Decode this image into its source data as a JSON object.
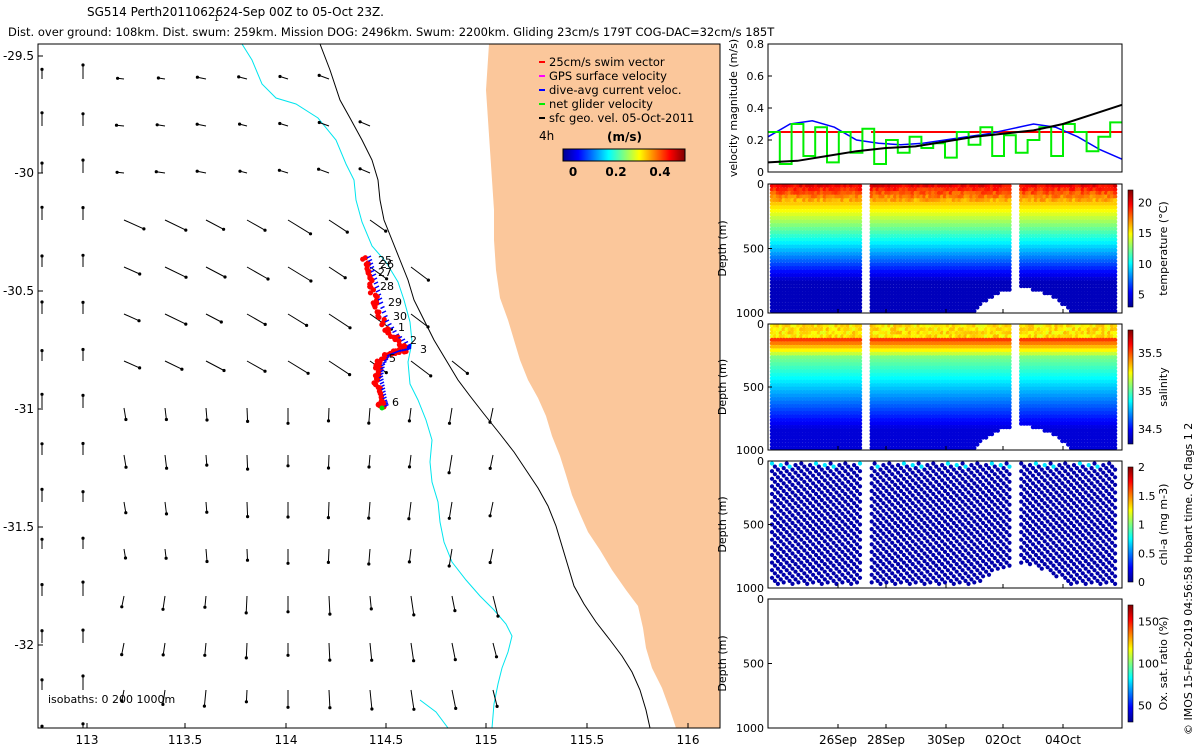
{
  "header": {
    "title": "SG514 Perth20110626",
    "title_sub": "1",
    "title_rest": "24-Sep 00Z to 05-Oct 23Z.",
    "subtitle": "Dist. over ground: 108km. Dist. swum: 259km. Mission DOG: 2496km. Swum: 2200km. Gliding 23cm/s 179T COG-DAC=32cm/s 185T"
  },
  "colors": {
    "land": "#fbc79b",
    "isobath_0": "#000000",
    "isobath_200": "#00e5ee",
    "swim_vector": "#ff0000",
    "gps_velocity": "#ff00ff",
    "dac_velocity": "#0000ff",
    "net_velocity": "#00ee00",
    "geo_velocity": "#000000",
    "track": "#ff0000",
    "track_dives": "#0000ff",
    "track_end": "#00dd00"
  },
  "map": {
    "legend": [
      {
        "label": "25cm/s swim vector",
        "color": "#ff0000"
      },
      {
        "label": "GPS surface velocity",
        "color": "#ff00ff"
      },
      {
        "label": "dive-avg current veloc.",
        "color": "#0000ff"
      },
      {
        "label": "net glider velocity",
        "color": "#00ee00"
      },
      {
        "label": "sfc geo. vel. 05-Oct-2011",
        "color": "#000000"
      }
    ],
    "interval_label": "4h",
    "colorbar_title": "(m/s)",
    "colorbar_ticks": [
      "0",
      "0.2",
      "0.4"
    ],
    "isobaths_label": "isobaths: 0   200  1000m",
    "x_ticks": [
      "113",
      "113.5",
      "114",
      "114.5",
      "115",
      "115.5",
      "116"
    ],
    "y_ticks": [
      "-29.5",
      "-30",
      "-30.5",
      "-31",
      "-31.5",
      "-32"
    ],
    "day_labels": [
      "25",
      "26",
      "27",
      "28",
      "29",
      "30",
      "1",
      "2",
      "3",
      "5",
      "6"
    ]
  },
  "chart_data": [
    {
      "type": "line",
      "title": "",
      "ylabel": "velocity magnitude (m/s)",
      "ylim": [
        0,
        0.8
      ],
      "y_ticks": [
        "0",
        "0.2",
        "0.4",
        "0.6",
        "0.8"
      ],
      "xlim": [
        "24-Sep",
        "06-Oct"
      ],
      "series": [
        {
          "name": "25cm/s swim vector",
          "color": "#ff0000",
          "values": [
            0.25,
            0.25
          ]
        },
        {
          "name": "dive-avg current veloc.",
          "color": "#0000ff",
          "values": [
            0.22,
            0.3,
            0.32,
            0.28,
            0.2,
            0.18,
            0.17,
            0.18,
            0.2,
            0.22,
            0.24,
            0.27,
            0.3,
            0.28,
            0.22,
            0.14,
            0.08
          ]
        },
        {
          "name": "net glider velocity",
          "color": "#00ee00",
          "values": [
            0.25,
            0.05,
            0.3,
            0.1,
            0.28,
            0.06,
            0.25,
            0.12,
            0.27,
            0.05,
            0.2,
            0.12,
            0.22,
            0.15,
            0.18,
            0.09,
            0.25,
            0.17,
            0.28,
            0.1,
            0.23,
            0.12,
            0.2,
            0.28,
            0.1,
            0.3,
            0.25,
            0.13,
            0.22,
            0.31
          ]
        },
        {
          "name": "sfc geo. vel.",
          "color": "#000000",
          "values": [
            0.06,
            0.07,
            0.1,
            0.13,
            0.15,
            0.16,
            0.19,
            0.22,
            0.24,
            0.26,
            0.3,
            0.36,
            0.42
          ]
        }
      ]
    },
    {
      "type": "heatmap",
      "ylabel": "Depth (m)",
      "y_ticks": [
        "0",
        "500",
        "1000"
      ],
      "colorbar_label": "temperature (°C)",
      "colorbar_ticks": [
        "20",
        "15",
        "10",
        "5"
      ],
      "range": [
        3,
        22
      ]
    },
    {
      "type": "heatmap",
      "ylabel": "Depth (m)",
      "y_ticks": [
        "0",
        "500",
        "1000"
      ],
      "colorbar_label": "salinity",
      "colorbar_ticks": [
        "35.5",
        "35",
        "34.5"
      ],
      "range": [
        34.3,
        35.8
      ]
    },
    {
      "type": "heatmap",
      "ylabel": "Depth (m)",
      "y_ticks": [
        "0",
        "500",
        "1000"
      ],
      "colorbar_label": "chl-a (mg m-3)",
      "colorbar_ticks": [
        "2",
        "1.5",
        "1",
        "0.5",
        "0"
      ],
      "range": [
        0,
        2
      ]
    },
    {
      "type": "heatmap",
      "ylabel": "Depth (m)",
      "y_ticks": [
        "0",
        "500",
        "1000"
      ],
      "x_ticks": [
        "26Sep",
        "28Sep",
        "30Sep",
        "02Oct",
        "04Oct"
      ],
      "colorbar_label": "Ox. sat. ratio (%)",
      "colorbar_ticks": [
        "150",
        "100",
        "50"
      ],
      "range": [
        30,
        170
      ]
    }
  ],
  "credit": "© IMOS 15-Feb-2019 04:56:58 Hobart time. QC flags 1  2"
}
